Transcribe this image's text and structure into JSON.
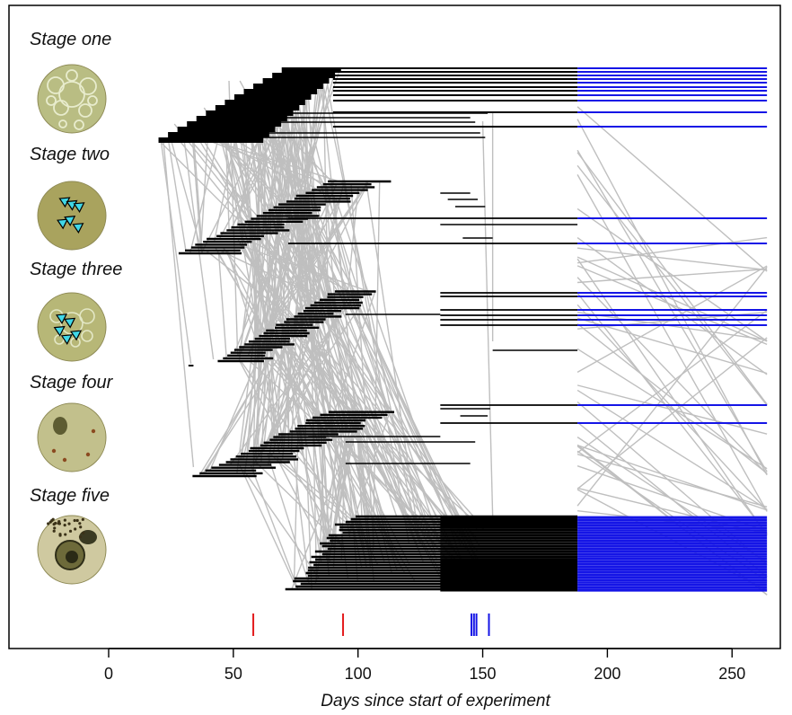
{
  "chart_data": {
    "type": "line",
    "title": "",
    "xlabel": "Days since start of experiment",
    "ylabel": "",
    "xlim": [
      -40,
      266
    ],
    "x_ticks": [
      0,
      50,
      100,
      150,
      200,
      250
    ],
    "x_tick_labels": [
      "0",
      "50",
      "100",
      "150",
      "200",
      "250"
    ],
    "grid": false,
    "stages": [
      {
        "name": "Stage one",
        "color": "#b9bd83",
        "arrows": []
      },
      {
        "name": "Stage two",
        "color": "#a9a35e",
        "arrows": [
          [
            -17,
            -13
          ],
          [
            -10,
            -10
          ],
          [
            -3,
            -8
          ],
          [
            -19,
            8
          ],
          [
            -12,
            5
          ],
          [
            -4,
            12
          ]
        ]
      },
      {
        "name": "Stage three",
        "color": "#b7b777",
        "arrows": [
          [
            -20,
            -8
          ],
          [
            -12,
            -4
          ],
          [
            -22,
            4
          ],
          [
            -15,
            12
          ],
          [
            -6,
            8
          ]
        ]
      },
      {
        "name": "Stage four",
        "color": "#c2c08c",
        "arrows": []
      },
      {
        "name": "Stage five",
        "color": "#cfc9a0",
        "arrows": []
      }
    ],
    "colors": {
      "observed": "#000000",
      "projected": "#1515e6",
      "transition": "#bfbfbf",
      "event_red": "#e31a1c",
      "event_blue": "#1515e6",
      "arrow": "#40d8e8"
    },
    "events": [
      {
        "day": 58,
        "color": "red"
      },
      {
        "day": 94,
        "color": "red"
      },
      {
        "day": 145.5,
        "color": "blue"
      },
      {
        "day": 146.5,
        "color": "blue"
      },
      {
        "day": 147.5,
        "color": "blue"
      },
      {
        "day": 152.5,
        "color": "blue"
      }
    ],
    "observation_end_day": 188,
    "projection_end_day": 264
  }
}
